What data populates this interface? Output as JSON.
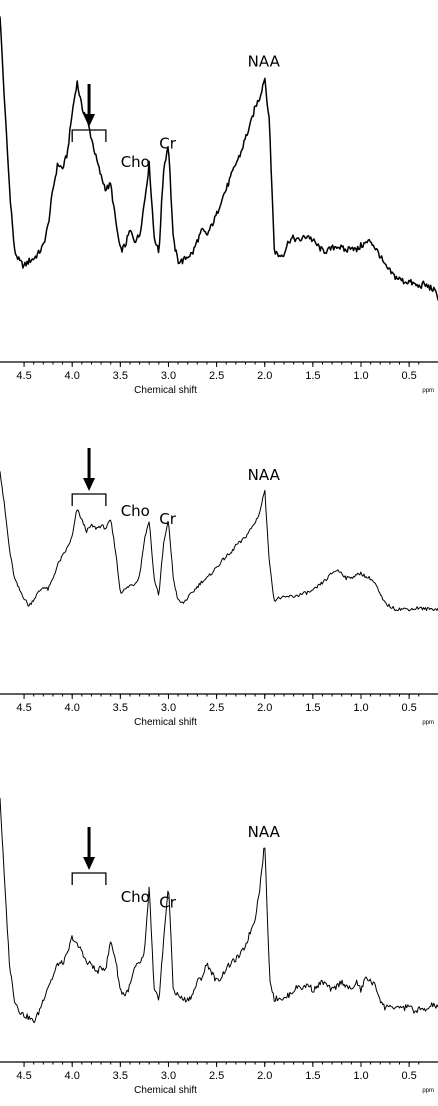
{
  "chart_data": [
    {
      "type": "line",
      "xlabel": "Chemical shift",
      "unit": "ppm",
      "x_reversed": true,
      "xlim": [
        4.75,
        0.2
      ],
      "x_ticks": [
        "4.5",
        "4.0",
        "3.5",
        "3.0",
        "2.5",
        "2.0",
        "1.5",
        "1.0",
        "0.5"
      ],
      "annotations": [
        {
          "text": "NAA",
          "x": 2.01
        },
        {
          "text": "Cr",
          "x": 3.03
        },
        {
          "text": "Cho",
          "x": 3.22
        }
      ],
      "bracket": {
        "from": 4.0,
        "to": 3.65
      },
      "series": [
        {
          "x": [
            4.75,
            4.7,
            4.65,
            4.6,
            4.55,
            4.5,
            4.45,
            4.4,
            4.35,
            4.3,
            4.25,
            4.2,
            4.15,
            4.1,
            4.05,
            4.0,
            3.95,
            3.9,
            3.85,
            3.8,
            3.75,
            3.7,
            3.65,
            3.6,
            3.55,
            3.5,
            3.45,
            3.4,
            3.35,
            3.3,
            3.25,
            3.2,
            3.15,
            3.1,
            3.05,
            3.0,
            2.95,
            2.9,
            2.85,
            2.8,
            2.75,
            2.7,
            2.65,
            2.6,
            2.55,
            2.5,
            2.45,
            2.4,
            2.35,
            2.3,
            2.25,
            2.2,
            2.15,
            2.1,
            2.05,
            2.0,
            1.95,
            1.9,
            1.85,
            1.8,
            1.75,
            1.7,
            1.65,
            1.6,
            1.55,
            1.5,
            1.45,
            1.4,
            1.35,
            1.3,
            1.25,
            1.2,
            1.15,
            1.1,
            1.05,
            1.0,
            0.95,
            0.9,
            0.85,
            0.8,
            0.75,
            0.7,
            0.65,
            0.6,
            0.55,
            0.5,
            0.45,
            0.4,
            0.35,
            0.3,
            0.25,
            0.2
          ],
          "y": [
            0.98,
            0.62,
            0.3,
            0.06,
            0.02,
            0.0,
            0.02,
            0.03,
            0.05,
            0.08,
            0.16,
            0.3,
            0.4,
            0.38,
            0.44,
            0.6,
            0.72,
            0.62,
            0.58,
            0.5,
            0.42,
            0.35,
            0.3,
            0.32,
            0.18,
            0.06,
            0.08,
            0.14,
            0.1,
            0.12,
            0.25,
            0.4,
            0.12,
            0.05,
            0.38,
            0.48,
            0.1,
            0.02,
            0.02,
            0.04,
            0.05,
            0.1,
            0.14,
            0.12,
            0.16,
            0.2,
            0.26,
            0.3,
            0.35,
            0.4,
            0.44,
            0.5,
            0.55,
            0.62,
            0.66,
            0.74,
            0.55,
            0.06,
            0.04,
            0.05,
            0.1,
            0.11,
            0.1,
            0.11,
            0.12,
            0.1,
            0.08,
            0.06,
            0.06,
            0.07,
            0.08,
            0.07,
            0.06,
            0.08,
            0.06,
            0.08,
            0.09,
            0.1,
            0.07,
            0.04,
            0.0,
            -0.02,
            -0.04,
            -0.05,
            -0.06,
            -0.06,
            -0.07,
            -0.08,
            -0.07,
            -0.08,
            -0.09,
            -0.12
          ]
        }
      ]
    },
    {
      "type": "line",
      "xlabel": "Chemical shift",
      "unit": "ppm",
      "x_reversed": true,
      "xlim": [
        4.75,
        0.2
      ],
      "x_ticks": [
        "4.5",
        "4.0",
        "3.5",
        "3.0",
        "2.5",
        "2.0",
        "1.5",
        "1.0",
        "0.5"
      ],
      "annotations": [
        {
          "text": "NAA",
          "x": 2.01
        },
        {
          "text": "Cr",
          "x": 3.03
        },
        {
          "text": "Cho",
          "x": 3.22
        }
      ],
      "bracket": {
        "from": 4.0,
        "to": 3.65
      },
      "series": [
        {
          "x": [
            4.75,
            4.7,
            4.65,
            4.6,
            4.55,
            4.5,
            4.45,
            4.4,
            4.35,
            4.3,
            4.25,
            4.2,
            4.15,
            4.1,
            4.05,
            4.0,
            3.95,
            3.9,
            3.85,
            3.8,
            3.75,
            3.7,
            3.65,
            3.6,
            3.55,
            3.5,
            3.45,
            3.4,
            3.35,
            3.3,
            3.25,
            3.2,
            3.15,
            3.1,
            3.05,
            3.0,
            2.95,
            2.9,
            2.85,
            2.8,
            2.75,
            2.7,
            2.65,
            2.6,
            2.55,
            2.5,
            2.45,
            2.4,
            2.35,
            2.3,
            2.25,
            2.2,
            2.15,
            2.1,
            2.05,
            2.0,
            1.95,
            1.9,
            1.85,
            1.8,
            1.75,
            1.7,
            1.65,
            1.6,
            1.55,
            1.5,
            1.45,
            1.4,
            1.35,
            1.3,
            1.25,
            1.2,
            1.15,
            1.1,
            1.05,
            1.0,
            0.95,
            0.9,
            0.85,
            0.8,
            0.75,
            0.7,
            0.65,
            0.6,
            0.55,
            0.5,
            0.45,
            0.4,
            0.35,
            0.3,
            0.25,
            0.2
          ],
          "y": [
            0.98,
            0.7,
            0.4,
            0.2,
            0.12,
            0.06,
            0.0,
            0.05,
            0.1,
            0.14,
            0.12,
            0.2,
            0.3,
            0.36,
            0.42,
            0.5,
            0.7,
            0.62,
            0.54,
            0.58,
            0.56,
            0.58,
            0.56,
            0.62,
            0.4,
            0.1,
            0.12,
            0.15,
            0.16,
            0.22,
            0.48,
            0.62,
            0.2,
            0.08,
            0.45,
            0.62,
            0.2,
            0.04,
            0.02,
            0.06,
            0.1,
            0.14,
            0.18,
            0.2,
            0.24,
            0.28,
            0.32,
            0.36,
            0.38,
            0.44,
            0.46,
            0.5,
            0.55,
            0.6,
            0.68,
            0.84,
            0.3,
            0.04,
            0.06,
            0.06,
            0.07,
            0.07,
            0.08,
            0.09,
            0.1,
            0.11,
            0.14,
            0.17,
            0.2,
            0.24,
            0.26,
            0.24,
            0.2,
            0.21,
            0.22,
            0.24,
            0.21,
            0.2,
            0.16,
            0.08,
            0.02,
            0.0,
            -0.02,
            -0.02,
            -0.02,
            -0.02,
            -0.02,
            -0.01,
            -0.02,
            -0.02,
            -0.02,
            -0.02
          ]
        }
      ]
    },
    {
      "type": "line",
      "xlabel": "Chemical shift",
      "unit": "ppm",
      "x_reversed": true,
      "xlim": [
        4.75,
        0.2
      ],
      "x_ticks": [
        "4.5",
        "4.0",
        "3.5",
        "3.0",
        "2.5",
        "2.0",
        "1.5",
        "1.0",
        "0.5"
      ],
      "annotations": [
        {
          "text": "NAA",
          "x": 2.01
        },
        {
          "text": "Cr",
          "x": 3.03
        },
        {
          "text": "Cho",
          "x": 3.22
        }
      ],
      "bracket": {
        "from": 4.0,
        "to": 3.65
      },
      "series": [
        {
          "x": [
            4.75,
            4.7,
            4.65,
            4.6,
            4.55,
            4.5,
            4.45,
            4.4,
            4.35,
            4.3,
            4.25,
            4.2,
            4.15,
            4.1,
            4.05,
            4.0,
            3.95,
            3.9,
            3.85,
            3.8,
            3.75,
            3.7,
            3.65,
            3.6,
            3.55,
            3.5,
            3.45,
            3.4,
            3.35,
            3.3,
            3.25,
            3.2,
            3.15,
            3.1,
            3.05,
            3.0,
            2.95,
            2.9,
            2.85,
            2.8,
            2.75,
            2.7,
            2.65,
            2.6,
            2.55,
            2.5,
            2.45,
            2.4,
            2.35,
            2.3,
            2.25,
            2.2,
            2.15,
            2.1,
            2.05,
            2.0,
            1.95,
            1.9,
            1.85,
            1.8,
            1.75,
            1.7,
            1.65,
            1.6,
            1.55,
            1.5,
            1.45,
            1.4,
            1.35,
            1.3,
            1.25,
            1.2,
            1.15,
            1.1,
            1.05,
            1.0,
            0.95,
            0.9,
            0.85,
            0.8,
            0.75,
            0.7,
            0.65,
            0.6,
            0.55,
            0.5,
            0.45,
            0.4,
            0.35,
            0.3,
            0.25,
            0.2
          ],
          "y": [
            1.0,
            0.6,
            0.25,
            0.1,
            0.05,
            0.03,
            0.02,
            0.0,
            0.04,
            0.1,
            0.16,
            0.2,
            0.26,
            0.26,
            0.3,
            0.38,
            0.34,
            0.32,
            0.26,
            0.26,
            0.22,
            0.24,
            0.24,
            0.36,
            0.28,
            0.14,
            0.12,
            0.16,
            0.24,
            0.26,
            0.3,
            0.6,
            0.14,
            0.1,
            0.36,
            0.62,
            0.14,
            0.12,
            0.1,
            0.1,
            0.12,
            0.18,
            0.2,
            0.26,
            0.22,
            0.18,
            0.2,
            0.24,
            0.26,
            0.28,
            0.3,
            0.34,
            0.4,
            0.46,
            0.6,
            0.8,
            0.2,
            0.1,
            0.11,
            0.1,
            0.12,
            0.14,
            0.16,
            0.15,
            0.17,
            0.14,
            0.16,
            0.18,
            0.16,
            0.14,
            0.16,
            0.18,
            0.16,
            0.14,
            0.18,
            0.14,
            0.2,
            0.18,
            0.16,
            0.1,
            0.06,
            0.08,
            0.05,
            0.07,
            0.06,
            0.08,
            0.04,
            0.06,
            0.05,
            0.06,
            0.08,
            0.06
          ]
        }
      ]
    }
  ]
}
